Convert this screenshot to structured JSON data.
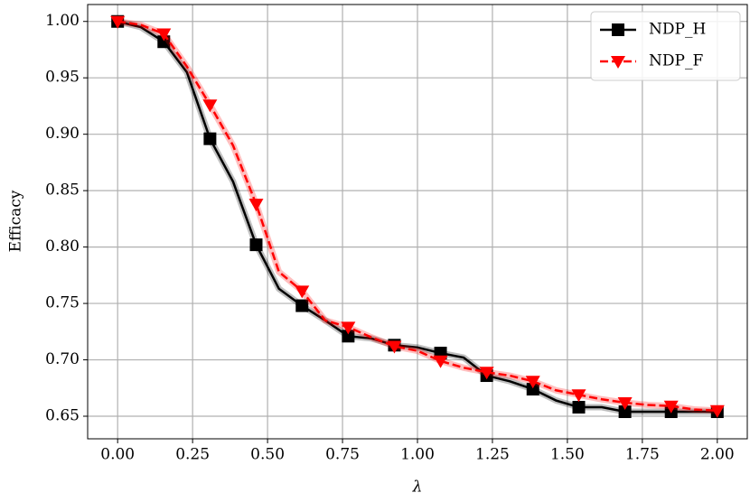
{
  "chart_data": {
    "type": "line",
    "xlabel": "λ",
    "ylabel": "Efficacy",
    "x": [
      0,
      0.077,
      0.154,
      0.231,
      0.308,
      0.385,
      0.462,
      0.538,
      0.615,
      0.692,
      0.769,
      0.846,
      0.923,
      1.0,
      1.077,
      1.154,
      1.231,
      1.308,
      1.385,
      1.462,
      1.538,
      1.615,
      1.692,
      1.769,
      1.846,
      1.923,
      2.0
    ],
    "series": [
      {
        "name": "NDP_H",
        "color": "#000000",
        "marker": "square",
        "dash": false,
        "values": [
          1.0,
          0.995,
          0.982,
          0.955,
          0.896,
          0.858,
          0.802,
          0.763,
          0.748,
          0.735,
          0.721,
          0.719,
          0.713,
          0.711,
          0.706,
          0.702,
          0.686,
          0.681,
          0.674,
          0.664,
          0.658,
          0.658,
          0.654,
          0.654,
          0.654,
          0.654,
          0.654
        ]
      },
      {
        "name": "NDP_F",
        "color": "#ff0000",
        "marker": "triangle-down",
        "dash": true,
        "values": [
          1.0,
          0.997,
          0.989,
          0.96,
          0.926,
          0.89,
          0.838,
          0.778,
          0.761,
          0.735,
          0.729,
          0.72,
          0.712,
          0.708,
          0.699,
          0.693,
          0.689,
          0.686,
          0.681,
          0.673,
          0.669,
          0.665,
          0.662,
          0.66,
          0.659,
          0.656,
          0.655
        ]
      }
    ],
    "markevery": 2,
    "xlim": [
      -0.1,
      2.1
    ],
    "ylim": [
      0.63,
      1.015
    ],
    "xticks": [
      {
        "value": 0,
        "label": "0.00"
      },
      {
        "value": 0.25,
        "label": "0.25"
      },
      {
        "value": 0.5,
        "label": "0.50"
      },
      {
        "value": 0.75,
        "label": "0.75"
      },
      {
        "value": 1,
        "label": "1.00"
      },
      {
        "value": 1.25,
        "label": "1.25"
      },
      {
        "value": 1.5,
        "label": "1.50"
      },
      {
        "value": 1.75,
        "label": "1.75"
      },
      {
        "value": 2,
        "label": "2.00"
      }
    ],
    "yticks": [
      {
        "value": 0.65,
        "label": "0.65"
      },
      {
        "value": 0.7,
        "label": "0.70"
      },
      {
        "value": 0.75,
        "label": "0.75"
      },
      {
        "value": 0.8,
        "label": "0.80"
      },
      {
        "value": 0.85,
        "label": "0.85"
      },
      {
        "value": 0.9,
        "label": "0.90"
      },
      {
        "value": 0.95,
        "label": "0.95"
      },
      {
        "value": 1.0,
        "label": "1.00"
      }
    ],
    "grid": true,
    "legend": "upper right"
  }
}
